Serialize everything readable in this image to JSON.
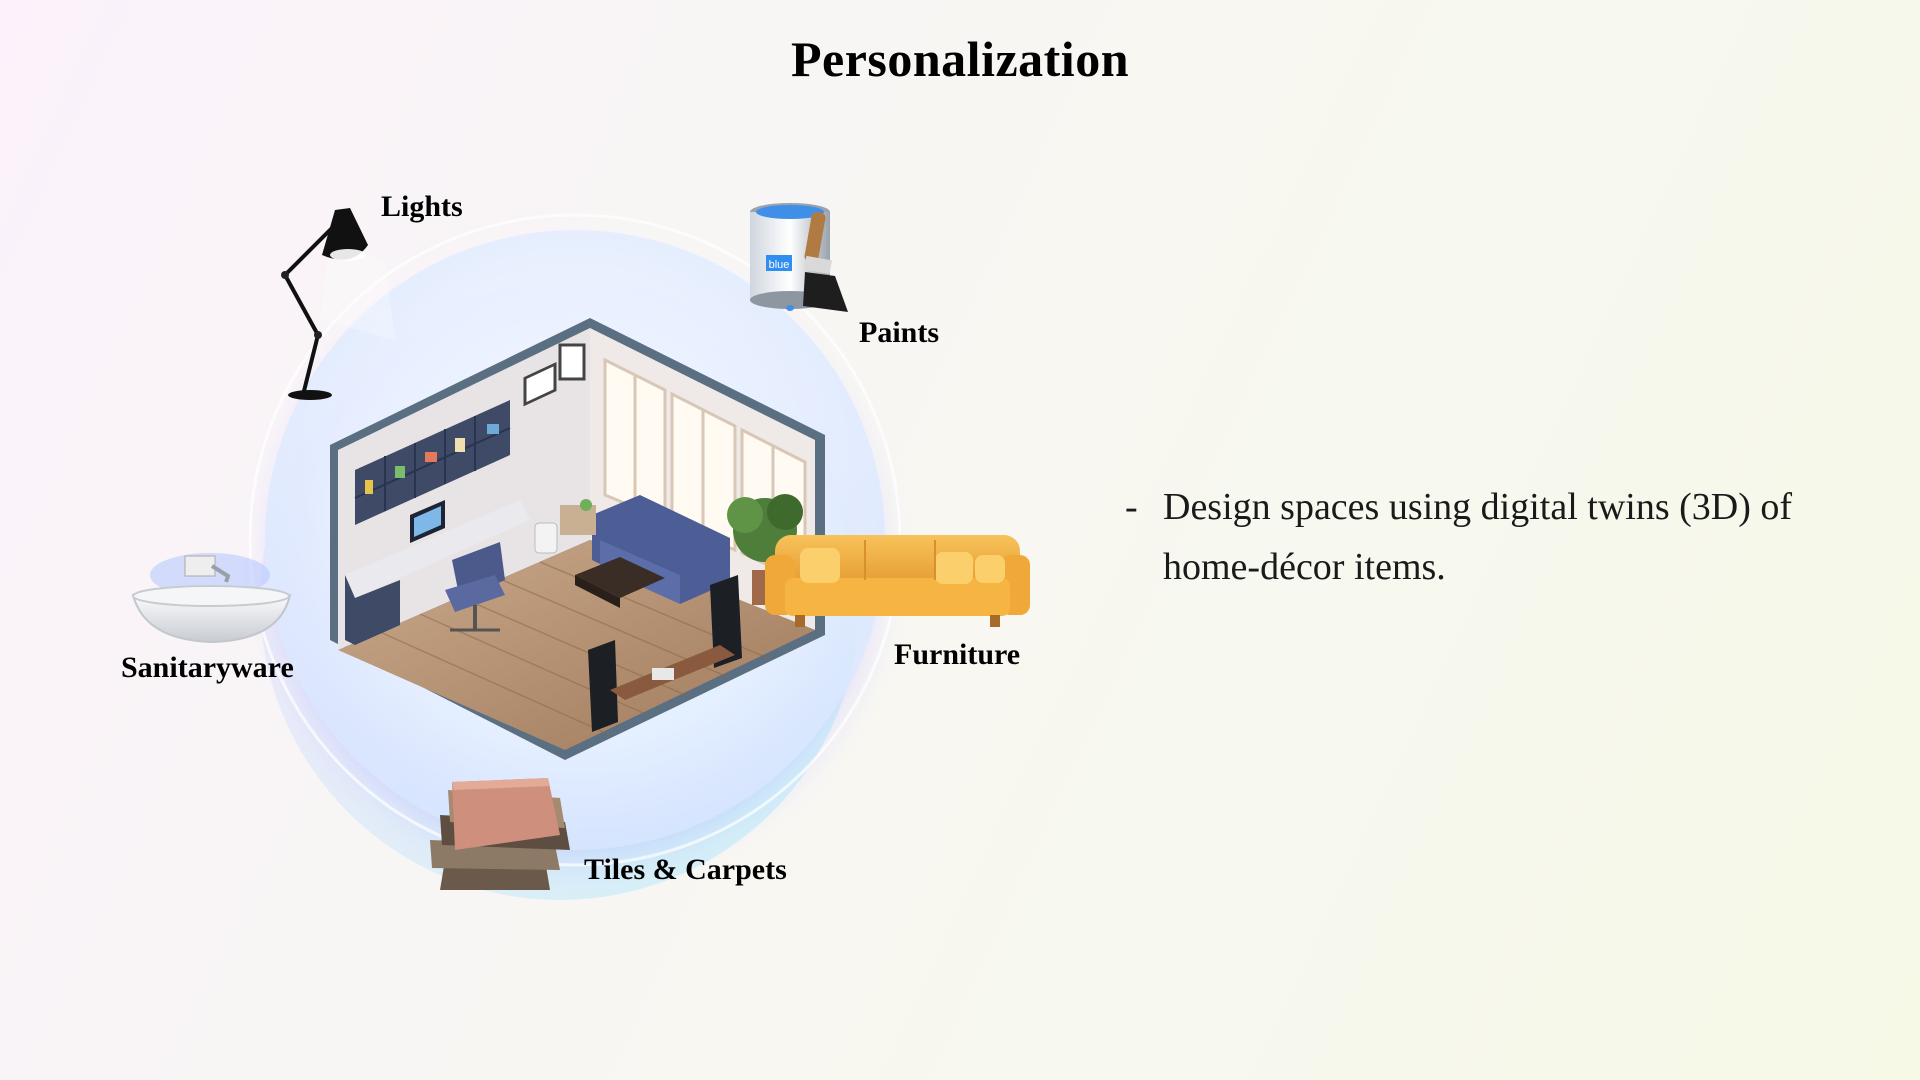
{
  "slide": {
    "title": "Personalization",
    "categories": {
      "lights": "Lights",
      "paints": "Paints",
      "furniture": "Furniture",
      "tiles": "Tiles & Carpets",
      "sanitaryware": "Sanitaryware"
    },
    "bullet": {
      "marker": "-",
      "text": "Design spaces using digital twins (3D) of home-décor items."
    },
    "paint_can_label": "blue"
  }
}
